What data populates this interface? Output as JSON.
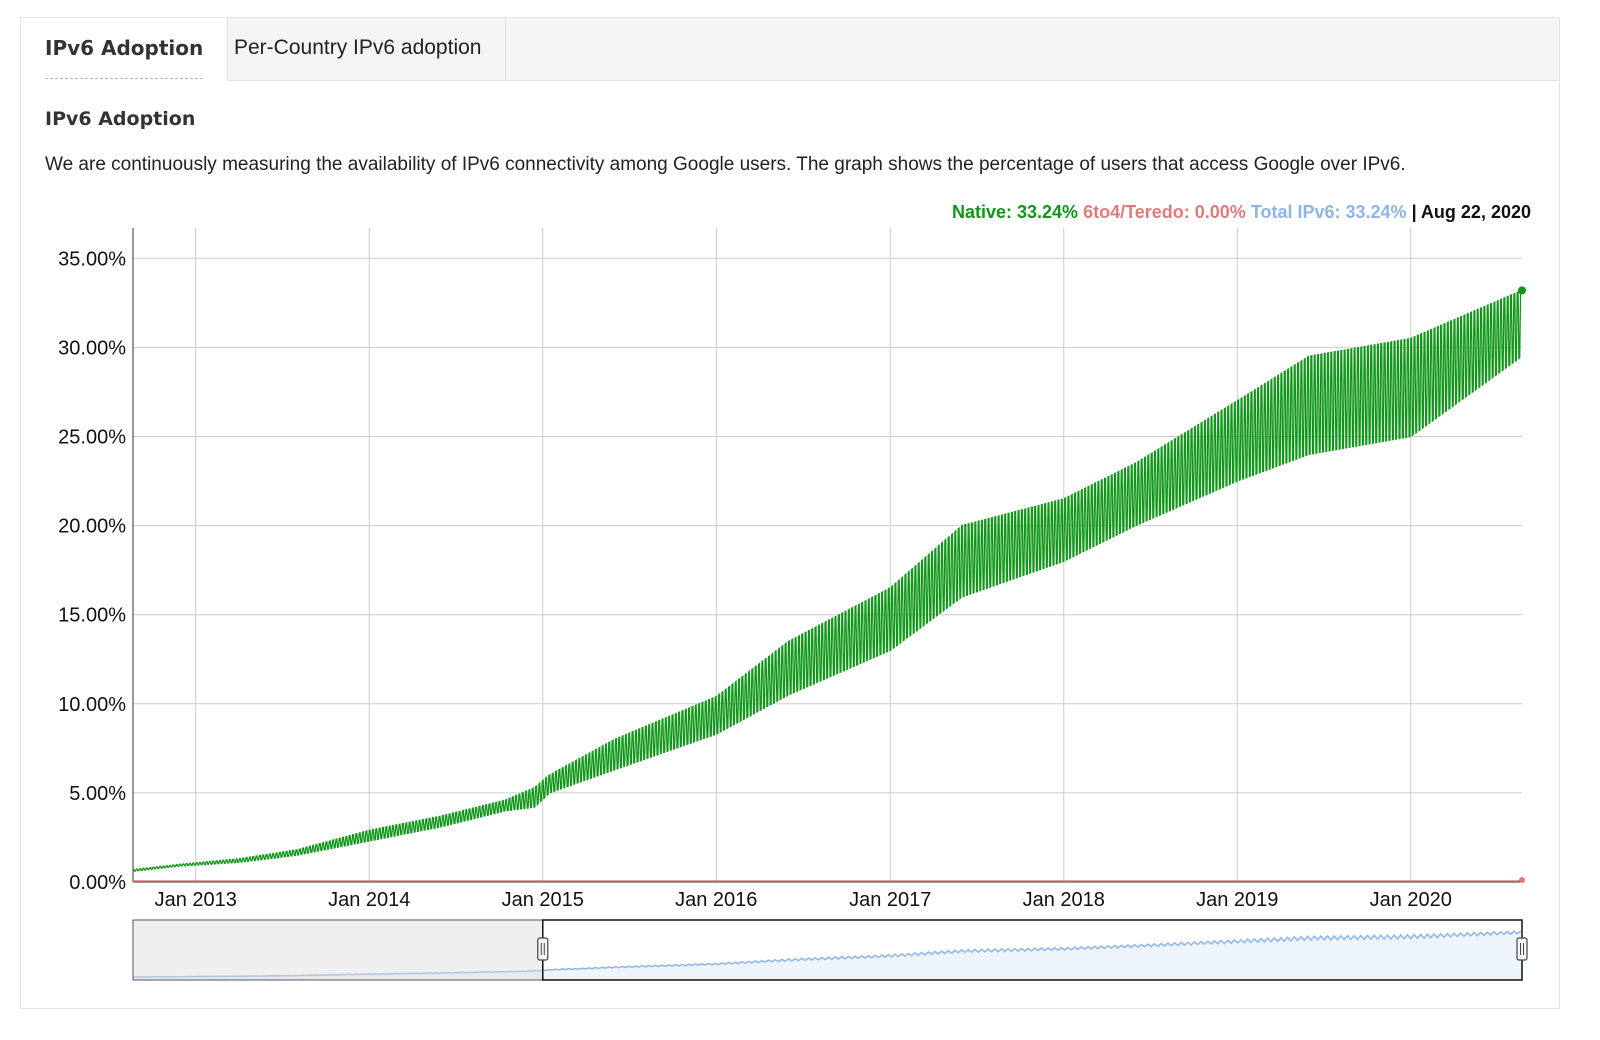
{
  "tabs": [
    {
      "label": "IPv6 Adoption",
      "active": true
    },
    {
      "label": "Per-Country IPv6 adoption",
      "active": false
    }
  ],
  "section": {
    "title": "IPv6 Adoption",
    "description": "We are continuously measuring the availability of IPv6 connectivity among Google users. The graph shows the percentage of users that access Google over IPv6."
  },
  "legend": {
    "native": "Native: 33.24%",
    "teredo": "6to4/Teredo: 0.00%",
    "total": "Total IPv6: 33.24%",
    "date": "| Aug 22, 2020"
  },
  "colors": {
    "native": "#109618",
    "teredo": "#e07b7b",
    "total": "#8fb5e6",
    "grid": "#cccccc"
  },
  "chart_data": {
    "type": "line",
    "title": "",
    "xlabel": "",
    "ylabel": "",
    "ylim": [
      0,
      36.7
    ],
    "y_ticks": [
      "0.00%",
      "5.00%",
      "10.00%",
      "15.00%",
      "20.00%",
      "25.00%",
      "30.00%",
      "35.00%"
    ],
    "y_tick_values": [
      0,
      5,
      10,
      15,
      20,
      25,
      30,
      35
    ],
    "x_tick_labels": [
      "Jan 2013",
      "Jan 2014",
      "Jan 2015",
      "Jan 2016",
      "Jan 2017",
      "Jan 2018",
      "Jan 2019",
      "Jan 2020"
    ],
    "x_range": [
      "2012-08-22",
      "2020-08-22"
    ],
    "grid": true,
    "series": [
      {
        "name": "Native",
        "color": "#109618",
        "x": [
          "2012-08-22",
          "2012-12-01",
          "2013-04-01",
          "2013-08-01",
          "2014-01-01",
          "2014-06-01",
          "2014-10-15",
          "2014-12-15",
          "2015-01-15",
          "2015-06-01",
          "2016-01-01",
          "2016-06-01",
          "2017-01-01",
          "2017-06-01",
          "2018-01-01",
          "2018-06-01",
          "2019-01-01",
          "2019-06-01",
          "2020-01-01",
          "2020-08-22"
        ],
        "y_high": [
          0.7,
          1.0,
          1.3,
          1.8,
          2.9,
          3.7,
          4.6,
          5.3,
          6.0,
          8.0,
          10.4,
          13.5,
          16.5,
          20.0,
          21.5,
          23.5,
          27.0,
          29.5,
          30.5,
          33.2
        ],
        "y_low": [
          0.6,
          0.9,
          1.1,
          1.5,
          2.3,
          3.1,
          4.0,
          4.2,
          5.0,
          6.3,
          8.3,
          10.5,
          13.0,
          16.0,
          18.0,
          20.0,
          22.5,
          24.0,
          25.0,
          29.5
        ]
      },
      {
        "name": "6to4/Teredo",
        "color": "#e07b7b",
        "x": [
          "2012-08-22",
          "2020-08-22"
        ],
        "y": [
          0.0,
          0.0
        ]
      }
    ]
  },
  "navigator": {
    "selection_start": "2015-01-01",
    "selection_end": "2020-08-22"
  }
}
